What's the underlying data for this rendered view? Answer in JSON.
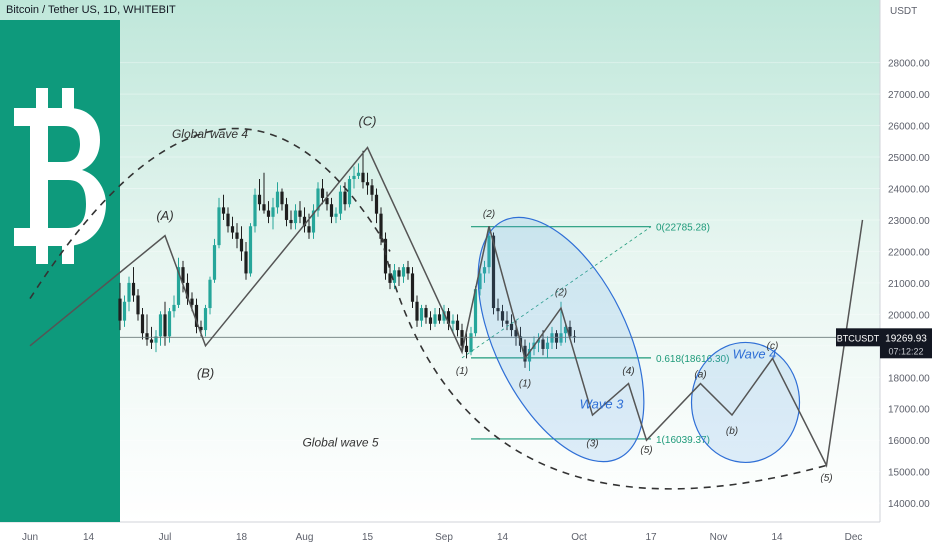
{
  "header": {
    "title": "Bitcoin / Tether US, 1D, WHITEBIT"
  },
  "axis": {
    "unit": "USDT"
  },
  "price_tag": {
    "symbol": "BTCUSDT",
    "price": "19269.93",
    "countdown": "07:12:22"
  },
  "colors": {
    "up": "#26a69a",
    "down": "#1f1f1f",
    "logo_panel": "#0e9a7c",
    "wave_line": "#555555",
    "fib": "#1e9a7a",
    "ellipse": "#2f6fd6"
  },
  "chart_data": {
    "type": "candlestick",
    "symbol": "BTCUSDT",
    "timeframe": "1D",
    "ylim": [
      13400,
      29800
    ],
    "yticks": [
      14000,
      15000,
      16000,
      17000,
      18000,
      19000,
      20000,
      21000,
      22000,
      23000,
      24000,
      25000,
      26000,
      27000,
      28000
    ],
    "ytick_labels": [
      "14000.00",
      "15000.00",
      "16000.00",
      "17000.00",
      "18000.00",
      "19000.00",
      "20000.00",
      "21000.00",
      "22000.00",
      "23000.00",
      "24000.00",
      "25000.00",
      "26000.00",
      "27000.00",
      "28000.00"
    ],
    "xticks": [
      {
        "label": "Jun",
        "day": 0
      },
      {
        "label": "14",
        "day": 13
      },
      {
        "label": "Jul",
        "day": 30
      },
      {
        "label": "18",
        "day": 47
      },
      {
        "label": "Aug",
        "day": 61
      },
      {
        "label": "15",
        "day": 75
      },
      {
        "label": "Sep",
        "day": 92
      },
      {
        "label": "14",
        "day": 105
      },
      {
        "label": "Oct",
        "day": 122
      },
      {
        "label": "17",
        "day": 138
      },
      {
        "label": "Nov",
        "day": 153
      },
      {
        "label": "14",
        "day": 166
      },
      {
        "label": "Dec",
        "day": 183
      }
    ],
    "candles": [
      {
        "d": 20,
        "o": 20500,
        "h": 21000,
        "l": 19500,
        "c": 19800
      },
      {
        "d": 21,
        "o": 19800,
        "h": 20600,
        "l": 19600,
        "c": 20400
      },
      {
        "d": 22,
        "o": 20400,
        "h": 21200,
        "l": 20100,
        "c": 21000
      },
      {
        "d": 23,
        "o": 21000,
        "h": 21500,
        "l": 20400,
        "c": 20600
      },
      {
        "d": 24,
        "o": 20600,
        "h": 20800,
        "l": 19800,
        "c": 20000
      },
      {
        "d": 25,
        "o": 20000,
        "h": 20200,
        "l": 19200,
        "c": 19400
      },
      {
        "d": 26,
        "o": 19400,
        "h": 20000,
        "l": 19000,
        "c": 19200
      },
      {
        "d": 27,
        "o": 19200,
        "h": 19600,
        "l": 18900,
        "c": 19100
      },
      {
        "d": 28,
        "o": 19100,
        "h": 19500,
        "l": 18800,
        "c": 19300
      },
      {
        "d": 29,
        "o": 19300,
        "h": 20100,
        "l": 19000,
        "c": 20000
      },
      {
        "d": 30,
        "o": 20000,
        "h": 20400,
        "l": 19000,
        "c": 19300
      },
      {
        "d": 31,
        "o": 19300,
        "h": 20200,
        "l": 19100,
        "c": 20100
      },
      {
        "d": 32,
        "o": 20100,
        "h": 20600,
        "l": 19900,
        "c": 20300
      },
      {
        "d": 33,
        "o": 20300,
        "h": 21800,
        "l": 20200,
        "c": 21500
      },
      {
        "d": 34,
        "o": 21500,
        "h": 21700,
        "l": 20700,
        "c": 21000
      },
      {
        "d": 35,
        "o": 21000,
        "h": 21300,
        "l": 20300,
        "c": 20500
      },
      {
        "d": 36,
        "o": 20500,
        "h": 20700,
        "l": 20100,
        "c": 20300
      },
      {
        "d": 37,
        "o": 20300,
        "h": 20500,
        "l": 19400,
        "c": 19600
      },
      {
        "d": 38,
        "o": 19600,
        "h": 19800,
        "l": 19300,
        "c": 19500
      },
      {
        "d": 39,
        "o": 19500,
        "h": 20300,
        "l": 19300,
        "c": 20200
      },
      {
        "d": 40,
        "o": 20200,
        "h": 21200,
        "l": 20000,
        "c": 21100
      },
      {
        "d": 41,
        "o": 21100,
        "h": 22400,
        "l": 21000,
        "c": 22200
      },
      {
        "d": 42,
        "o": 22200,
        "h": 23700,
        "l": 22100,
        "c": 23400
      },
      {
        "d": 43,
        "o": 23400,
        "h": 23800,
        "l": 23000,
        "c": 23200
      },
      {
        "d": 44,
        "o": 23200,
        "h": 23400,
        "l": 22600,
        "c": 22800
      },
      {
        "d": 45,
        "o": 22800,
        "h": 23100,
        "l": 22400,
        "c": 22600
      },
      {
        "d": 46,
        "o": 22600,
        "h": 22900,
        "l": 22100,
        "c": 22400
      },
      {
        "d": 47,
        "o": 22400,
        "h": 22800,
        "l": 21700,
        "c": 22000
      },
      {
        "d": 48,
        "o": 22000,
        "h": 22300,
        "l": 21100,
        "c": 21300
      },
      {
        "d": 49,
        "o": 21300,
        "h": 22900,
        "l": 21200,
        "c": 22800
      },
      {
        "d": 50,
        "o": 22800,
        "h": 24000,
        "l": 22600,
        "c": 23800
      },
      {
        "d": 51,
        "o": 23800,
        "h": 24300,
        "l": 23300,
        "c": 23500
      },
      {
        "d": 52,
        "o": 23500,
        "h": 24500,
        "l": 23200,
        "c": 23300
      },
      {
        "d": 53,
        "o": 23300,
        "h": 23600,
        "l": 22900,
        "c": 23100
      },
      {
        "d": 54,
        "o": 23100,
        "h": 23700,
        "l": 22700,
        "c": 23400
      },
      {
        "d": 55,
        "o": 23400,
        "h": 24200,
        "l": 23200,
        "c": 23900
      },
      {
        "d": 56,
        "o": 23900,
        "h": 24000,
        "l": 23300,
        "c": 23500
      },
      {
        "d": 57,
        "o": 23500,
        "h": 23700,
        "l": 22800,
        "c": 23000
      },
      {
        "d": 58,
        "o": 23000,
        "h": 23300,
        "l": 22700,
        "c": 22900
      },
      {
        "d": 59,
        "o": 22900,
        "h": 23500,
        "l": 22700,
        "c": 23300
      },
      {
        "d": 60,
        "o": 23300,
        "h": 23600,
        "l": 22900,
        "c": 23100
      },
      {
        "d": 61,
        "o": 23100,
        "h": 23400,
        "l": 22600,
        "c": 22800
      },
      {
        "d": 62,
        "o": 22800,
        "h": 23200,
        "l": 22400,
        "c": 22600
      },
      {
        "d": 63,
        "o": 22600,
        "h": 23500,
        "l": 22400,
        "c": 23300
      },
      {
        "d": 64,
        "o": 23300,
        "h": 24200,
        "l": 23100,
        "c": 24000
      },
      {
        "d": 65,
        "o": 24000,
        "h": 24300,
        "l": 23500,
        "c": 23700
      },
      {
        "d": 66,
        "o": 23700,
        "h": 23900,
        "l": 23300,
        "c": 23500
      },
      {
        "d": 67,
        "o": 23500,
        "h": 23700,
        "l": 22900,
        "c": 23100
      },
      {
        "d": 68,
        "o": 23100,
        "h": 23400,
        "l": 22900,
        "c": 23200
      },
      {
        "d": 69,
        "o": 23200,
        "h": 24100,
        "l": 23000,
        "c": 23900
      },
      {
        "d": 70,
        "o": 23900,
        "h": 24200,
        "l": 23300,
        "c": 23500
      },
      {
        "d": 71,
        "o": 23500,
        "h": 24400,
        "l": 23400,
        "c": 24300
      },
      {
        "d": 72,
        "o": 24300,
        "h": 24700,
        "l": 24000,
        "c": 24400
      },
      {
        "d": 73,
        "o": 24400,
        "h": 24800,
        "l": 24300,
        "c": 24500
      },
      {
        "d": 74,
        "o": 24500,
        "h": 25200,
        "l": 24000,
        "c": 24200
      },
      {
        "d": 75,
        "o": 24200,
        "h": 24500,
        "l": 23800,
        "c": 24100
      },
      {
        "d": 76,
        "o": 24100,
        "h": 24300,
        "l": 23600,
        "c": 23800
      },
      {
        "d": 77,
        "o": 23800,
        "h": 24000,
        "l": 22900,
        "c": 23200
      },
      {
        "d": 78,
        "o": 23200,
        "h": 23400,
        "l": 22200,
        "c": 22400
      },
      {
        "d": 79,
        "o": 22400,
        "h": 22600,
        "l": 21100,
        "c": 21300
      },
      {
        "d": 80,
        "o": 21300,
        "h": 21600,
        "l": 20800,
        "c": 21000
      },
      {
        "d": 81,
        "o": 21000,
        "h": 21600,
        "l": 20800,
        "c": 21400
      },
      {
        "d": 82,
        "o": 21400,
        "h": 21500,
        "l": 20900,
        "c": 21200
      },
      {
        "d": 83,
        "o": 21200,
        "h": 21600,
        "l": 21000,
        "c": 21500
      },
      {
        "d": 84,
        "o": 21500,
        "h": 21700,
        "l": 21100,
        "c": 21300
      },
      {
        "d": 85,
        "o": 21300,
        "h": 21500,
        "l": 20200,
        "c": 20400
      },
      {
        "d": 86,
        "o": 20400,
        "h": 20600,
        "l": 19600,
        "c": 19800
      },
      {
        "d": 87,
        "o": 19800,
        "h": 20300,
        "l": 19600,
        "c": 20200
      },
      {
        "d": 88,
        "o": 20200,
        "h": 20300,
        "l": 19700,
        "c": 19900
      },
      {
        "d": 89,
        "o": 19900,
        "h": 20100,
        "l": 19500,
        "c": 19700
      },
      {
        "d": 90,
        "o": 19700,
        "h": 20200,
        "l": 19600,
        "c": 20000
      },
      {
        "d": 91,
        "o": 20000,
        "h": 20200,
        "l": 19700,
        "c": 19800
      },
      {
        "d": 92,
        "o": 19800,
        "h": 20300,
        "l": 19700,
        "c": 20100
      },
      {
        "d": 93,
        "o": 20100,
        "h": 20200,
        "l": 19500,
        "c": 19700
      },
      {
        "d": 94,
        "o": 19700,
        "h": 20000,
        "l": 19400,
        "c": 19800
      },
      {
        "d": 95,
        "o": 19800,
        "h": 20000,
        "l": 19300,
        "c": 19500
      },
      {
        "d": 96,
        "o": 19500,
        "h": 19700,
        "l": 18800,
        "c": 19000
      },
      {
        "d": 97,
        "o": 19000,
        "h": 19400,
        "l": 18600,
        "c": 18800
      },
      {
        "d": 98,
        "o": 18800,
        "h": 19600,
        "l": 18700,
        "c": 19400
      },
      {
        "d": 99,
        "o": 19400,
        "h": 20900,
        "l": 19300,
        "c": 20800
      },
      {
        "d": 100,
        "o": 20800,
        "h": 21500,
        "l": 20600,
        "c": 21300
      },
      {
        "d": 101,
        "o": 21300,
        "h": 21700,
        "l": 21000,
        "c": 21500
      },
      {
        "d": 102,
        "o": 21500,
        "h": 22800,
        "l": 21300,
        "c": 22500
      },
      {
        "d": 103,
        "o": 22500,
        "h": 22600,
        "l": 20000,
        "c": 20200
      },
      {
        "d": 104,
        "o": 20200,
        "h": 20500,
        "l": 19800,
        "c": 20100
      },
      {
        "d": 105,
        "o": 20100,
        "h": 20300,
        "l": 19600,
        "c": 19800
      },
      {
        "d": 106,
        "o": 19800,
        "h": 20100,
        "l": 19500,
        "c": 19700
      },
      {
        "d": 107,
        "o": 19700,
        "h": 20000,
        "l": 19300,
        "c": 19500
      },
      {
        "d": 108,
        "o": 19500,
        "h": 19800,
        "l": 19000,
        "c": 19300
      },
      {
        "d": 109,
        "o": 19300,
        "h": 19600,
        "l": 18800,
        "c": 19000
      },
      {
        "d": 110,
        "o": 19000,
        "h": 19200,
        "l": 18300,
        "c": 18500
      },
      {
        "d": 111,
        "o": 18500,
        "h": 19100,
        "l": 18200,
        "c": 18900
      },
      {
        "d": 112,
        "o": 18900,
        "h": 19300,
        "l": 18700,
        "c": 19100
      },
      {
        "d": 113,
        "o": 19100,
        "h": 19400,
        "l": 18800,
        "c": 19200
      },
      {
        "d": 114,
        "o": 19200,
        "h": 19500,
        "l": 18700,
        "c": 18900
      },
      {
        "d": 115,
        "o": 18900,
        "h": 19300,
        "l": 18600,
        "c": 19100
      },
      {
        "d": 116,
        "o": 19100,
        "h": 19600,
        "l": 18900,
        "c": 19400
      },
      {
        "d": 117,
        "o": 19400,
        "h": 19500,
        "l": 18900,
        "c": 19100
      },
      {
        "d": 118,
        "o": 19100,
        "h": 20400,
        "l": 19000,
        "c": 19400
      },
      {
        "d": 119,
        "o": 19400,
        "h": 19700,
        "l": 19100,
        "c": 19600
      },
      {
        "d": 120,
        "o": 19600,
        "h": 19800,
        "l": 19200,
        "c": 19300
      },
      {
        "d": 121,
        "o": 19300,
        "h": 19500,
        "l": 19100,
        "c": 19270
      }
    ],
    "current_price": 19269.93,
    "fib_levels": [
      {
        "label": "0(22785.28)",
        "price": 22785.28
      },
      {
        "label": "0.618(18616.30)",
        "price": 18616.3
      },
      {
        "label": "1(16039.37)",
        "price": 16039.37
      }
    ],
    "wave_labels": [
      {
        "text": "(A)",
        "day": 30,
        "price": 23000
      },
      {
        "text": "(B)",
        "day": 39,
        "price": 18000
      },
      {
        "text": "(C)",
        "day": 75,
        "price": 26000
      },
      {
        "text": "(1)",
        "day": 96,
        "price": 18100
      },
      {
        "text": "(2)",
        "day": 102,
        "price": 23100
      },
      {
        "text": "(1)",
        "day": 110,
        "price": 17700
      },
      {
        "text": "(2)",
        "day": 118,
        "price": 20600
      },
      {
        "text": "(3)",
        "day": 125,
        "price": 15800
      },
      {
        "text": "(4)",
        "day": 133,
        "price": 18100
      },
      {
        "text": "(5)",
        "day": 137,
        "price": 15600
      },
      {
        "text": "(a)",
        "day": 149,
        "price": 18000
      },
      {
        "text": "(b)",
        "day": 156,
        "price": 16200
      },
      {
        "text": "(c)",
        "day": 165,
        "price": 18900
      },
      {
        "text": "(5)",
        "day": 177,
        "price": 14700
      },
      {
        "text": "Wave 3",
        "day": 127,
        "price": 17000
      },
      {
        "text": "Wave 4",
        "day": 161,
        "price": 18600
      },
      {
        "text": "Global wave 4",
        "day": 40,
        "price": 25600
      },
      {
        "text": "Global wave 5",
        "day": 69,
        "price": 15800
      }
    ],
    "wave_path": [
      {
        "day": 0,
        "price": 19000
      },
      {
        "day": 30,
        "price": 22500
      },
      {
        "day": 39,
        "price": 19000
      },
      {
        "day": 75,
        "price": 25300
      },
      {
        "day": 96,
        "price": 18800
      },
      {
        "day": 102,
        "price": 22800
      },
      {
        "day": 110,
        "price": 18600
      },
      {
        "day": 118,
        "price": 20200
      },
      {
        "day": 125,
        "price": 16800
      },
      {
        "day": 133,
        "price": 17800
      },
      {
        "day": 137,
        "price": 16000
      },
      {
        "day": 149,
        "price": 17800
      },
      {
        "day": 156,
        "price": 16800
      },
      {
        "day": 165,
        "price": 18600
      },
      {
        "day": 177,
        "price": 15200
      },
      {
        "day": 185,
        "price": 23000
      }
    ]
  }
}
